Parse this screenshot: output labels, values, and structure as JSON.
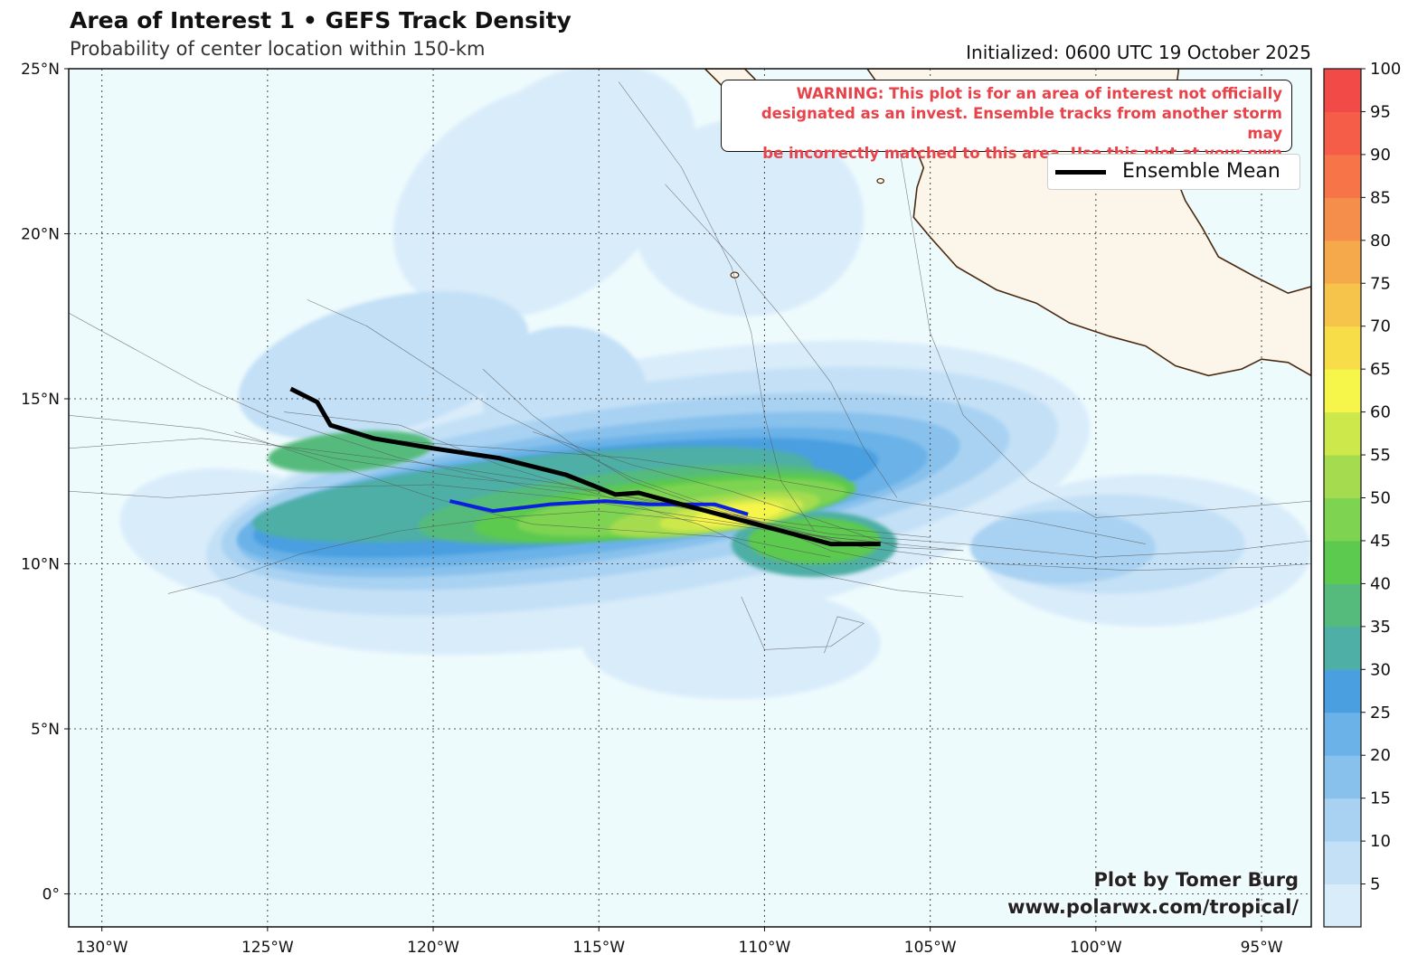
{
  "header": {
    "title": "Area of Interest 1 • GEFS Track Density",
    "subtitle": "Probability of center location within 150-km",
    "initialized": "Initialized: 0600 UTC 19 October 2025"
  },
  "warning": {
    "lines": [
      "WARNING: This plot is for an area of interest not officially",
      "designated as an invest. Ensemble tracks from another storm may",
      "be incorrectly matched to this area. Use this plot at your own risk."
    ]
  },
  "legend": {
    "label": "Ensemble Mean"
  },
  "credit": {
    "line1": "Plot by Tomer Burg",
    "line2": "www.polarwx.com/tropical/"
  },
  "colors": {
    "ocean": "#eefbfd",
    "land": "#fcf5e9",
    "coast": "#4a2a10",
    "mean_track": "#000000",
    "operational_track": "#0b1fe0",
    "colorbar": [
      "#d9ecfa",
      "#c3e0f6",
      "#a9d2f2",
      "#88c1ec",
      "#6bb2e8",
      "#4a9fe0",
      "#4eafa6",
      "#54bb7c",
      "#5cc94f",
      "#7ed451",
      "#a5dc4f",
      "#cde84b",
      "#f6f54a",
      "#f7dd48",
      "#f6c44a",
      "#f5a94b",
      "#f68e4b",
      "#f77449",
      "#f55d48",
      "#f24a47"
    ]
  },
  "axes": {
    "lon_range": [
      -131,
      -93.5
    ],
    "lat_range": [
      -1,
      25
    ],
    "lon_ticks": [
      {
        "value": -130,
        "label": "130°W"
      },
      {
        "value": -125,
        "label": "125°W"
      },
      {
        "value": -120,
        "label": "120°W"
      },
      {
        "value": -115,
        "label": "115°W"
      },
      {
        "value": -110,
        "label": "110°W"
      },
      {
        "value": -105,
        "label": "105°W"
      },
      {
        "value": -100,
        "label": "100°W"
      },
      {
        "value": -95,
        "label": "95°W"
      }
    ],
    "lat_ticks": [
      {
        "value": 0,
        "label": "0°"
      },
      {
        "value": 5,
        "label": "5°N"
      },
      {
        "value": 10,
        "label": "10°N"
      },
      {
        "value": 15,
        "label": "15°N"
      },
      {
        "value": 20,
        "label": "20°N"
      },
      {
        "value": 25,
        "label": "25°N"
      }
    ],
    "grid": true
  },
  "colorbar": {
    "ticks": [
      5,
      10,
      15,
      20,
      25,
      30,
      35,
      40,
      45,
      50,
      55,
      60,
      65,
      70,
      75,
      80,
      85,
      90,
      95,
      100
    ],
    "range": [
      0,
      100
    ]
  },
  "tracks": {
    "ensemble_mean": [
      [
        -124.3,
        15.3
      ],
      [
        -123.5,
        14.9
      ],
      [
        -123.1,
        14.2
      ],
      [
        -121.8,
        13.8
      ],
      [
        -120,
        13.5
      ],
      [
        -118,
        13.2
      ],
      [
        -116,
        12.7
      ],
      [
        -115,
        12.3
      ],
      [
        -114.5,
        12.1
      ],
      [
        -113.8,
        12.15
      ],
      [
        -112.5,
        11.8
      ],
      [
        -111,
        11.4
      ],
      [
        -109.5,
        11.0
      ],
      [
        -108,
        10.6
      ],
      [
        -106.5,
        10.6
      ]
    ],
    "operational": [
      [
        -119.5,
        11.9
      ],
      [
        -118.2,
        11.6
      ],
      [
        -116.5,
        11.8
      ],
      [
        -114.8,
        11.9
      ],
      [
        -113.5,
        11.8
      ],
      [
        -111.5,
        11.8
      ],
      [
        -110.5,
        11.5
      ]
    ]
  },
  "density_levels": [
    {
      "value": 5,
      "color_index": 0,
      "blobs": [
        {
          "cx": -113.5,
          "cy": 12.0,
          "rx": 13.5,
          "ry": 4.2,
          "rot": -10
        },
        {
          "cx": -117.0,
          "cy": 21.0,
          "rx": 4.5,
          "ry": 3.2,
          "rot": -30
        },
        {
          "cx": -110.5,
          "cy": 20.5,
          "rx": 3.5,
          "ry": 3.0,
          "rot": 0
        },
        {
          "cx": -125.5,
          "cy": 10.8,
          "rx": 4.0,
          "ry": 2.0,
          "rot": 10
        },
        {
          "cx": -111.0,
          "cy": 7.6,
          "rx": 4.5,
          "ry": 1.7,
          "rot": 0
        },
        {
          "cx": -98.5,
          "cy": 10.4,
          "rx": 5.0,
          "ry": 2.3,
          "rot": 0
        },
        {
          "cx": -115.5,
          "cy": 22.5,
          "rx": 3.5,
          "ry": 2.5,
          "rot": -20
        }
      ]
    },
    {
      "value": 10,
      "color_index": 1,
      "blobs": [
        {
          "cx": -114.0,
          "cy": 12.2,
          "rx": 13.0,
          "ry": 3.2,
          "rot": -9
        },
        {
          "cx": -121.5,
          "cy": 16.0,
          "rx": 4.5,
          "ry": 2.0,
          "rot": -15
        },
        {
          "cx": -116.0,
          "cy": 15.0,
          "rx": 2.5,
          "ry": 2.2,
          "rot": 0
        },
        {
          "cx": -99.5,
          "cy": 10.6,
          "rx": 4.0,
          "ry": 1.5,
          "rot": 0
        }
      ]
    },
    {
      "value": 15,
      "color_index": 2,
      "blobs": [
        {
          "cx": -114.5,
          "cy": 12.2,
          "rx": 12.0,
          "ry": 2.5,
          "rot": -8
        },
        {
          "cx": -101.0,
          "cy": 10.5,
          "rx": 2.8,
          "ry": 1.1,
          "rot": 0
        }
      ]
    },
    {
      "value": 20,
      "color_index": 3,
      "blobs": [
        {
          "cx": -115.0,
          "cy": 12.1,
          "rx": 11.0,
          "ry": 2.0,
          "rot": -8
        }
      ]
    },
    {
      "value": 25,
      "color_index": 4,
      "blobs": [
        {
          "cx": -115.5,
          "cy": 12.0,
          "rx": 10.5,
          "ry": 1.7,
          "rot": -7
        }
      ]
    },
    {
      "value": 30,
      "color_index": 5,
      "blobs": [
        {
          "cx": -116.0,
          "cy": 12.0,
          "rx": 9.5,
          "ry": 1.4,
          "rot": -7
        }
      ]
    },
    {
      "value": 35,
      "color_index": 6,
      "blobs": [
        {
          "cx": -117.0,
          "cy": 12.1,
          "rx": 8.5,
          "ry": 1.15,
          "rot": -6
        },
        {
          "cx": -108.5,
          "cy": 10.6,
          "rx": 2.5,
          "ry": 1.0,
          "rot": 0
        }
      ]
    },
    {
      "value": 40,
      "color_index": 7,
      "blobs": [
        {
          "cx": -114.0,
          "cy": 11.8,
          "rx": 6.5,
          "ry": 1.0,
          "rot": -6
        },
        {
          "cx": -122.5,
          "cy": 13.4,
          "rx": 2.5,
          "ry": 0.6,
          "rot": -5
        }
      ]
    },
    {
      "value": 45,
      "color_index": 8,
      "blobs": [
        {
          "cx": -113.0,
          "cy": 11.7,
          "rx": 5.8,
          "ry": 0.85,
          "rot": -6
        },
        {
          "cx": -108.5,
          "cy": 10.7,
          "rx": 2.0,
          "ry": 0.7,
          "rot": 0
        }
      ]
    },
    {
      "value": 50,
      "color_index": 9,
      "blobs": [
        {
          "cx": -112.5,
          "cy": 11.7,
          "rx": 5.0,
          "ry": 0.7,
          "rot": -6
        }
      ]
    },
    {
      "value": 55,
      "color_index": 10,
      "blobs": [
        {
          "cx": -111.5,
          "cy": 11.5,
          "rx": 3.2,
          "ry": 0.55,
          "rot": -8
        }
      ]
    },
    {
      "value": 60,
      "color_index": 11,
      "blobs": [
        {
          "cx": -111.0,
          "cy": 11.5,
          "rx": 2.2,
          "ry": 0.42,
          "rot": -8
        }
      ]
    },
    {
      "value": 65,
      "color_index": 12,
      "blobs": [
        {
          "cx": -110.8,
          "cy": 11.5,
          "rx": 1.4,
          "ry": 0.3,
          "rot": -8
        }
      ]
    }
  ],
  "members": [
    [
      [
        -131,
        13.5
      ],
      [
        -127,
        13.8
      ],
      [
        -124,
        13.5
      ],
      [
        -120,
        13.0
      ],
      [
        -116,
        12.4
      ],
      [
        -112,
        11.6
      ],
      [
        -108,
        10.9
      ],
      [
        -104,
        10.6
      ],
      [
        -100,
        10.2
      ],
      [
        -96,
        10.4
      ],
      [
        -93.5,
        10.7
      ]
    ],
    [
      [
        -131,
        14.5
      ],
      [
        -127,
        14.1
      ],
      [
        -123,
        13.2
      ],
      [
        -119,
        12.6
      ],
      [
        -115,
        12.2
      ],
      [
        -111,
        11.5
      ],
      [
        -107,
        10.5
      ],
      [
        -103,
        10.0
      ],
      [
        -99,
        9.8
      ],
      [
        -95,
        9.9
      ],
      [
        -93.5,
        10.0
      ]
    ],
    [
      [
        -131,
        17.6
      ],
      [
        -129,
        16.5
      ],
      [
        -127,
        15.4
      ],
      [
        -125,
        14.5
      ],
      [
        -121,
        13.2
      ],
      [
        -117,
        12.3
      ],
      [
        -113,
        11.8
      ],
      [
        -109,
        11.2
      ],
      [
        -105,
        10.8
      ]
    ],
    [
      [
        -131,
        12.2
      ],
      [
        -128,
        12.0
      ],
      [
        -124,
        12.3
      ],
      [
        -120,
        12.4
      ],
      [
        -116,
        12.0
      ],
      [
        -112,
        11.4
      ],
      [
        -108,
        10.8
      ],
      [
        -104,
        10.4
      ]
    ],
    [
      [
        -128,
        9.1
      ],
      [
        -126,
        9.6
      ],
      [
        -124,
        10.3
      ],
      [
        -121,
        11.0
      ],
      [
        -118,
        11.4
      ],
      [
        -115,
        11.6
      ],
      [
        -112,
        11.3
      ],
      [
        -109,
        10.9
      ],
      [
        -106,
        10.6
      ]
    ],
    [
      [
        -123.8,
        18.0
      ],
      [
        -122,
        17.2
      ],
      [
        -120,
        15.9
      ],
      [
        -118,
        14.6
      ],
      [
        -116,
        13.6
      ],
      [
        -114,
        12.6
      ],
      [
        -112,
        11.9
      ],
      [
        -110,
        11.2
      ],
      [
        -107,
        10.5
      ]
    ],
    [
      [
        -118.5,
        15.9
      ],
      [
        -117,
        14.5
      ],
      [
        -115.5,
        13.4
      ],
      [
        -114,
        12.5
      ],
      [
        -112,
        11.8
      ],
      [
        -110,
        11.2
      ],
      [
        -108,
        10.4
      ],
      [
        -106,
        10.0
      ]
    ],
    [
      [
        -124.5,
        14.6
      ],
      [
        -121,
        14.2
      ],
      [
        -118,
        13.0
      ],
      [
        -115,
        12.1
      ],
      [
        -112,
        11.2
      ],
      [
        -110,
        10.3
      ],
      [
        -108,
        9.6
      ],
      [
        -106,
        9.2
      ],
      [
        -104,
        9.0
      ]
    ],
    [
      [
        -114.4,
        24.6
      ],
      [
        -112.5,
        22.0
      ],
      [
        -111,
        19.0
      ],
      [
        -110.4,
        17.0
      ],
      [
        -110,
        14.5
      ],
      [
        -109.5,
        12.5
      ],
      [
        -108.5,
        11.0
      ]
    ],
    [
      [
        -106,
        23.0
      ],
      [
        -105.5,
        20.0
      ],
      [
        -105,
        17.0
      ],
      [
        -104,
        14.5
      ],
      [
        -102,
        12.5
      ],
      [
        -100,
        11.4
      ],
      [
        -97,
        11.6
      ],
      [
        -93.5,
        11.9
      ]
    ],
    [
      [
        -113,
        21.5
      ],
      [
        -111,
        19.3
      ],
      [
        -109.5,
        17.5
      ],
      [
        -108,
        15.5
      ],
      [
        -107,
        13.5
      ],
      [
        -106,
        12.0
      ]
    ],
    [
      [
        -110.7,
        9.0
      ],
      [
        -110,
        7.4
      ],
      [
        -108,
        7.5
      ],
      [
        -107,
        8.2
      ],
      [
        -107.8,
        8.4
      ],
      [
        -108.2,
        7.3
      ]
    ],
    [
      [
        -117,
        14.0
      ],
      [
        -114,
        13.0
      ],
      [
        -111,
        12.2
      ],
      [
        -108,
        11.2
      ],
      [
        -106,
        10.5
      ],
      [
        -104,
        10.4
      ]
    ],
    [
      [
        -122,
        13.8
      ],
      [
        -118,
        13.5
      ],
      [
        -114,
        13.2
      ],
      [
        -110,
        12.6
      ],
      [
        -106,
        11.9
      ],
      [
        -102,
        11.3
      ],
      [
        -98.5,
        10.6
      ]
    ],
    [
      [
        -126,
        14.0
      ],
      [
        -123,
        13.0
      ],
      [
        -120,
        12.0
      ],
      [
        -117,
        11.2
      ],
      [
        -114,
        11.0
      ],
      [
        -111,
        10.8
      ],
      [
        -108,
        10.2
      ]
    ]
  ],
  "land": {
    "mexico": [
      [
        -93.5,
        18.4
      ],
      [
        -94.2,
        18.2
      ],
      [
        -95.2,
        18.7
      ],
      [
        -96.3,
        19.3
      ],
      [
        -96.8,
        20.2
      ],
      [
        -97.3,
        21.0
      ],
      [
        -97.7,
        22.0
      ],
      [
        -97.8,
        23.0
      ],
      [
        -97.6,
        24.2
      ],
      [
        -97.5,
        25.0
      ],
      [
        -106.9,
        25.0
      ],
      [
        -106.2,
        24.0
      ],
      [
        -105.6,
        23.0
      ],
      [
        -105.2,
        22.0
      ],
      [
        -105.4,
        21.4
      ],
      [
        -105.5,
        20.5
      ],
      [
        -105.0,
        19.9
      ],
      [
        -104.2,
        19.0
      ],
      [
        -103.0,
        18.3
      ],
      [
        -101.8,
        17.9
      ],
      [
        -100.8,
        17.3
      ],
      [
        -99.6,
        16.9
      ],
      [
        -98.5,
        16.6
      ],
      [
        -97.6,
        16.0
      ],
      [
        -96.6,
        15.7
      ],
      [
        -95.6,
        15.9
      ],
      [
        -95.0,
        16.2
      ],
      [
        -94.2,
        16.1
      ],
      [
        -93.5,
        15.7
      ]
    ],
    "baja": [
      [
        -111.8,
        25.0
      ],
      [
        -111.3,
        24.5
      ],
      [
        -110.5,
        24.1
      ],
      [
        -110.0,
        23.4
      ],
      [
        -109.4,
        23.0
      ],
      [
        -109.8,
        23.8
      ],
      [
        -110.3,
        24.7
      ],
      [
        -110.6,
        25.0
      ]
    ],
    "islands": [
      {
        "lon": -110.9,
        "lat": 18.75,
        "r": 0.12
      },
      {
        "lon": -106.5,
        "lat": 21.6,
        "r": 0.1
      }
    ]
  }
}
